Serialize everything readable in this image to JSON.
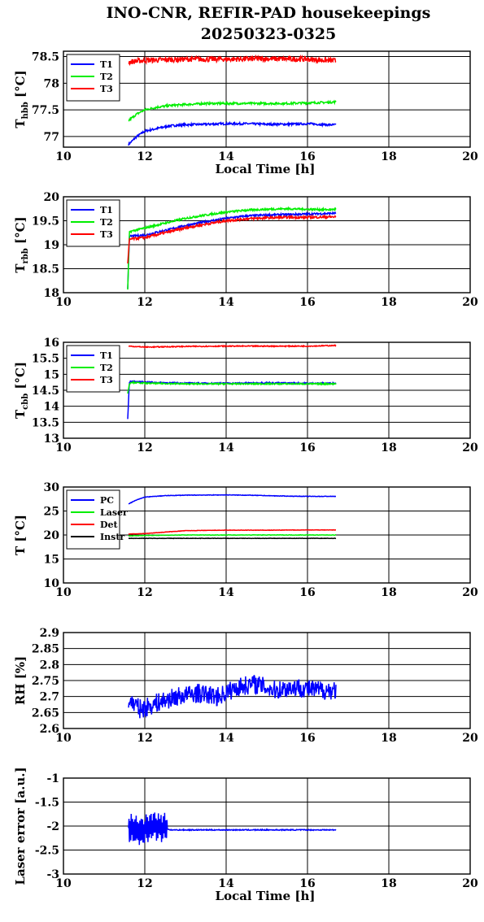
{
  "title": [
    "INO-CNR, REFIR-PAD housekeepings",
    "20250323-0325"
  ],
  "xlabel": "Local Time [h]",
  "chart_data": [
    {
      "type": "line",
      "name": "Thbb",
      "ylabel_main": "T",
      "ylabel_sub": "hbb",
      "ylabel_unit": "[°C]",
      "xlim": [
        10,
        20
      ],
      "xticks": [
        "10",
        "12",
        "14",
        "16",
        "18",
        "20"
      ],
      "ylim": [
        76.8,
        78.6
      ],
      "yticks": [
        {
          "v": 77,
          "t": "77"
        },
        {
          "v": 77.5,
          "t": "77.5"
        },
        {
          "v": 78,
          "t": "78"
        },
        {
          "v": 78.5,
          "t": "78.5"
        }
      ],
      "grid": true,
      "xlabel": "Local Time [h]",
      "legend": "top-left",
      "series": [
        {
          "name": "T1",
          "color": "#0000ff",
          "x": [
            11.6,
            11.8,
            12.0,
            12.3,
            12.6,
            13.0,
            13.5,
            14.0,
            14.5,
            15.0,
            15.5,
            16.0,
            16.5,
            16.7
          ],
          "y": [
            76.85,
            77.0,
            77.1,
            77.15,
            77.2,
            77.22,
            77.23,
            77.24,
            77.24,
            77.23,
            77.23,
            77.24,
            77.22,
            77.22
          ],
          "noise": 0.02
        },
        {
          "name": "T2",
          "color": "#00ee00",
          "x": [
            11.6,
            11.8,
            12.0,
            12.3,
            12.6,
            13.0,
            13.5,
            14.0,
            14.5,
            15.0,
            15.5,
            16.0,
            16.5,
            16.7
          ],
          "y": [
            77.3,
            77.42,
            77.5,
            77.55,
            77.58,
            77.6,
            77.62,
            77.62,
            77.62,
            77.62,
            77.62,
            77.63,
            77.64,
            77.65
          ],
          "noise": 0.02
        },
        {
          "name": "T3",
          "color": "#ff0000",
          "x": [
            11.6,
            12.0,
            13.0,
            14.0,
            15.0,
            16.0,
            16.7
          ],
          "y": [
            78.4,
            78.43,
            78.45,
            78.45,
            78.46,
            78.45,
            78.42
          ],
          "noise": 0.05
        }
      ]
    },
    {
      "type": "line",
      "name": "Trbb",
      "ylabel_main": "T",
      "ylabel_sub": "rbb",
      "ylabel_unit": "[°C]",
      "xlim": [
        10,
        20
      ],
      "xticks": [
        "10",
        "12",
        "14",
        "16",
        "18",
        "20"
      ],
      "ylim": [
        18,
        20
      ],
      "yticks": [
        {
          "v": 18,
          "t": "18"
        },
        {
          "v": 18.5,
          "t": "18.5"
        },
        {
          "v": 19,
          "t": "19"
        },
        {
          "v": 19.5,
          "t": "19.5"
        },
        {
          "v": 20,
          "t": "20"
        }
      ],
      "grid": true,
      "legend": "top-left",
      "series": [
        {
          "name": "T1",
          "color": "#0000ff",
          "x": [
            11.58,
            11.62,
            11.66,
            12.0,
            12.5,
            13.0,
            13.5,
            14.0,
            14.5,
            15.0,
            15.5,
            16.0,
            16.5,
            16.7
          ],
          "y": [
            18.1,
            19.15,
            19.18,
            19.2,
            19.3,
            19.4,
            19.48,
            19.55,
            19.6,
            19.62,
            19.63,
            19.64,
            19.65,
            19.66
          ],
          "noise": 0.02
        },
        {
          "name": "T2",
          "color": "#00ee00",
          "x": [
            11.58,
            11.62,
            11.66,
            12.0,
            12.5,
            13.0,
            13.5,
            14.0,
            14.5,
            15.0,
            15.5,
            16.0,
            16.5,
            16.7
          ],
          "y": [
            18.05,
            19.25,
            19.28,
            19.35,
            19.45,
            19.55,
            19.62,
            19.68,
            19.72,
            19.74,
            19.75,
            19.74,
            19.73,
            19.74
          ],
          "noise": 0.02
        },
        {
          "name": "T3",
          "color": "#ff0000",
          "x": [
            11.58,
            11.62,
            11.66,
            12.0,
            12.5,
            13.0,
            13.5,
            14.0,
            14.5,
            15.0,
            15.5,
            16.0,
            16.5,
            16.7
          ],
          "y": [
            18.6,
            19.1,
            19.12,
            19.15,
            19.25,
            19.35,
            19.43,
            19.5,
            19.54,
            19.56,
            19.57,
            19.57,
            19.58,
            19.58
          ],
          "noise": 0.025
        }
      ]
    },
    {
      "type": "line",
      "name": "Tcbb",
      "ylabel_main": "T",
      "ylabel_sub": "cbb",
      "ylabel_unit": "[°C]",
      "xlim": [
        10,
        20
      ],
      "xticks": [
        "10",
        "12",
        "14",
        "16",
        "18",
        "20"
      ],
      "ylim": [
        13,
        16
      ],
      "yticks": [
        {
          "v": 13,
          "t": "13"
        },
        {
          "v": 13.5,
          "t": "13.5"
        },
        {
          "v": 14,
          "t": "14"
        },
        {
          "v": 14.5,
          "t": "14.5"
        },
        {
          "v": 15,
          "t": "15"
        },
        {
          "v": 15.5,
          "t": "15.5"
        },
        {
          "v": 16,
          "t": "16"
        }
      ],
      "grid": true,
      "legend": "top-left",
      "series": [
        {
          "name": "T1",
          "color": "#0000ff",
          "x": [
            11.58,
            11.62,
            11.66,
            12.0,
            13.0,
            14.0,
            15.0,
            16.0,
            16.7
          ],
          "y": [
            13.6,
            14.75,
            14.78,
            14.75,
            14.72,
            14.72,
            14.73,
            14.72,
            14.72
          ],
          "noise": 0.02
        },
        {
          "name": "T2",
          "color": "#00ee00",
          "x": [
            11.58,
            11.62,
            11.66,
            12.0,
            13.0,
            14.0,
            15.0,
            16.0,
            16.7
          ],
          "y": [
            14.4,
            14.7,
            14.75,
            14.72,
            14.7,
            14.7,
            14.7,
            14.7,
            14.7
          ],
          "noise": 0.02
        },
        {
          "name": "T3",
          "color": "#ff0000",
          "x": [
            11.6,
            12.0,
            13.0,
            14.0,
            15.0,
            16.0,
            16.7
          ],
          "y": [
            15.88,
            15.85,
            15.87,
            15.88,
            15.88,
            15.88,
            15.9
          ],
          "noise": 0.015
        }
      ]
    },
    {
      "type": "line",
      "name": "Tsys",
      "ylabel_main": "T [°C]",
      "ylabel_sub": "",
      "ylabel_unit": "",
      "xlim": [
        10,
        20
      ],
      "xticks": [
        "10",
        "12",
        "14",
        "16",
        "18",
        "20"
      ],
      "ylim": [
        10,
        30
      ],
      "yticks": [
        {
          "v": 10,
          "t": "10"
        },
        {
          "v": 15,
          "t": "15"
        },
        {
          "v": 20,
          "t": "20"
        },
        {
          "v": 25,
          "t": "25"
        },
        {
          "v": 30,
          "t": "30"
        }
      ],
      "grid": true,
      "legend": "top-left",
      "series": [
        {
          "name": "PC",
          "color": "#0000ff",
          "x": [
            11.6,
            11.8,
            12.0,
            12.5,
            13.0,
            14.0,
            14.5,
            15.0,
            15.5,
            16.0,
            16.7
          ],
          "y": [
            26.5,
            27.3,
            27.9,
            28.2,
            28.3,
            28.35,
            28.3,
            28.2,
            28.1,
            28.05,
            28.05
          ],
          "noise": 0.05
        },
        {
          "name": "Laser",
          "color": "#00ee00",
          "x": [
            11.6,
            12.0,
            13.0,
            14.0,
            15.0,
            16.0,
            16.7
          ],
          "y": [
            19.8,
            19.9,
            20.0,
            20.0,
            20.0,
            20.0,
            20.0
          ],
          "noise": 0.04
        },
        {
          "name": "Det",
          "color": "#ff0000",
          "x": [
            11.6,
            12.0,
            12.5,
            13.0,
            14.0,
            15.0,
            16.0,
            16.7
          ],
          "y": [
            20.2,
            20.3,
            20.6,
            20.9,
            21.0,
            21.0,
            21.05,
            21.05
          ],
          "noise": 0.04
        },
        {
          "name": "Instr",
          "color": "#000000",
          "x": [
            11.6,
            12.0,
            13.0,
            14.0,
            15.0,
            16.0,
            16.7
          ],
          "y": [
            19.3,
            19.3,
            19.3,
            19.3,
            19.3,
            19.3,
            19.3
          ],
          "noise": 0.04
        }
      ]
    },
    {
      "type": "line",
      "name": "RH",
      "ylabel_main": "RH [%]",
      "ylabel_sub": "",
      "ylabel_unit": "",
      "xlim": [
        10,
        20
      ],
      "xticks": [
        "10",
        "12",
        "14",
        "16",
        "18",
        "20"
      ],
      "ylim": [
        2.6,
        2.9
      ],
      "yticks": [
        {
          "v": 2.6,
          "t": "2.6"
        },
        {
          "v": 2.65,
          "t": "2.65"
        },
        {
          "v": 2.7,
          "t": "2.7"
        },
        {
          "v": 2.75,
          "t": "2.75"
        },
        {
          "v": 2.8,
          "t": "2.8"
        },
        {
          "v": 2.85,
          "t": "2.85"
        },
        {
          "v": 2.9,
          "t": "2.9"
        }
      ],
      "grid": true,
      "legend": "",
      "series": [
        {
          "name": "",
          "color": "#0000ff",
          "x": [
            11.6,
            11.9,
            12.3,
            12.8,
            13.3,
            13.8,
            14.3,
            14.7,
            15.2,
            15.7,
            16.2,
            16.7
          ],
          "y": [
            2.69,
            2.66,
            2.68,
            2.7,
            2.71,
            2.7,
            2.73,
            2.74,
            2.72,
            2.73,
            2.72,
            2.72
          ],
          "noise": 0.03
        }
      ]
    },
    {
      "type": "line",
      "name": "LaserError",
      "ylabel_main": "Laser error [a.u.]",
      "ylabel_sub": "",
      "ylabel_unit": "",
      "xlim": [
        10,
        20
      ],
      "xticks": [
        "10",
        "12",
        "14",
        "16",
        "18",
        "20"
      ],
      "ylim": [
        -3,
        -1
      ],
      "yticks": [
        {
          "v": -3,
          "t": "-3"
        },
        {
          "v": -2.5,
          "t": "-2.5"
        },
        {
          "v": -2,
          "t": "-2"
        },
        {
          "v": -1.5,
          "t": "-1.5"
        },
        {
          "v": -1,
          "t": "-1"
        }
      ],
      "grid": true,
      "xlabel": "Local Time [h]",
      "legend": "",
      "series": [
        {
          "name": "",
          "color": "#0000ff",
          "x": [
            11.6,
            11.9,
            12.2,
            12.5,
            12.6,
            13.0,
            14.0,
            15.0,
            16.0,
            16.7
          ],
          "y": [
            -2.05,
            -2.1,
            -2.0,
            -2.05,
            -2.08,
            -2.08,
            -2.08,
            -2.08,
            -2.08,
            -2.08
          ],
          "noise": 0.01,
          "osc": [
            11.6,
            12.55,
            0.35
          ]
        }
      ]
    }
  ]
}
